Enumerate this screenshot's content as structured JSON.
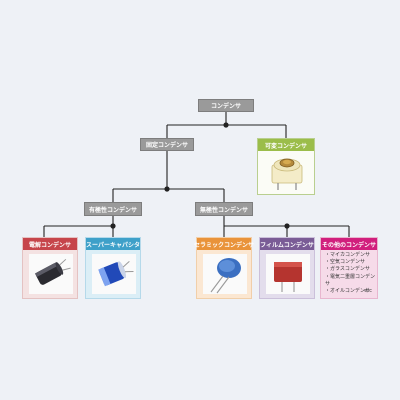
{
  "root": {
    "label": "コンデンサ"
  },
  "fixed": {
    "label": "固定コンデンサ"
  },
  "variable": {
    "label": "可変コンデンサ",
    "color": "#9bbd4a"
  },
  "polar": {
    "label": "有極性コンデンサ"
  },
  "nonpolar": {
    "label": "無極性コンデンサ"
  },
  "leaves": {
    "electrolytic": {
      "label": "電解コンデンサ",
      "color": "#c6454b"
    },
    "supercap": {
      "label": "スーパーキャパシタ",
      "color": "#3ea0c9"
    },
    "ceramic": {
      "label": "セラミックコンデンサ",
      "color": "#e9933a"
    },
    "film": {
      "label": "フィルムコンデンサ",
      "color": "#7a5c96"
    },
    "other": {
      "label": "その他のコンデンサ",
      "color": "#d11f7d",
      "items": [
        "・マイカコンデンサ",
        "・空気コンデンサ",
        "・ガラスコンデンサ",
        "・電気二重層コンデンサ",
        "・オイルコンデンサ"
      ],
      "etc": "etc"
    }
  },
  "colors": {
    "line": "#222222",
    "gray_box": "#9a9a9a",
    "background": "#eef1f6"
  }
}
